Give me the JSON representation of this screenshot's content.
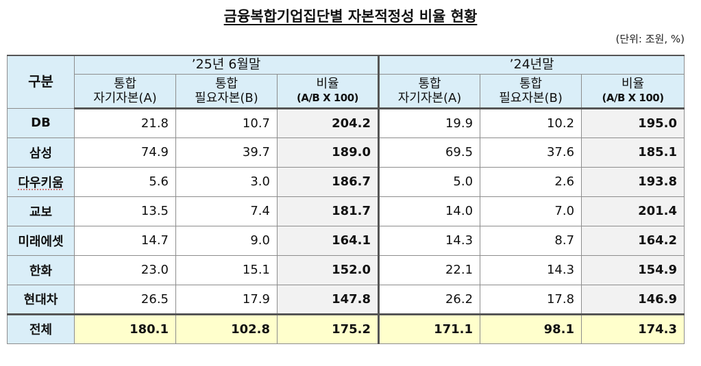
{
  "title": "금융복합기업집단별 자본적정성 비율 현황",
  "unit": "(단위: 조원, %)",
  "header": {
    "corner": "구분",
    "period1": "’25년 6월말",
    "period2": "’24년말",
    "col_a_line1": "통합",
    "col_a_line2": "자기자본(A)",
    "col_b_line1": "통합",
    "col_b_line2": "필요자본(B)",
    "col_r_line1": "비율",
    "col_r_line2": "(A/B X 100)"
  },
  "rows": [
    {
      "name": "DB",
      "a25": "21.8",
      "b25": "10.7",
      "r25": "204.2",
      "a24": "19.9",
      "b24": "10.2",
      "r24": "195.0"
    },
    {
      "name": "삼성",
      "a25": "74.9",
      "b25": "39.7",
      "r25": "189.0",
      "a24": "69.5",
      "b24": "37.6",
      "r24": "185.1"
    },
    {
      "name": "다우키움",
      "a25": "5.6",
      "b25": "3.0",
      "r25": "186.7",
      "a24": "5.0",
      "b24": "2.6",
      "r24": "193.8"
    },
    {
      "name": "교보",
      "a25": "13.5",
      "b25": "7.4",
      "r25": "181.7",
      "a24": "14.0",
      "b24": "7.0",
      "r24": "201.4"
    },
    {
      "name": "미래에셋",
      "a25": "14.7",
      "b25": "9.0",
      "r25": "164.1",
      "a24": "14.3",
      "b24": "8.7",
      "r24": "164.2"
    },
    {
      "name": "한화",
      "a25": "23.0",
      "b25": "15.1",
      "r25": "152.0",
      "a24": "22.1",
      "b24": "14.3",
      "r24": "154.9"
    },
    {
      "name": "현대차",
      "a25": "26.5",
      "b25": "17.9",
      "r25": "147.8",
      "a24": "26.2",
      "b24": "17.8",
      "r24": "146.9"
    }
  ],
  "total": {
    "name": "전체",
    "a25": "180.1",
    "b25": "102.8",
    "r25": "175.2",
    "a24": "171.1",
    "b24": "98.1",
    "r24": "174.3"
  }
}
